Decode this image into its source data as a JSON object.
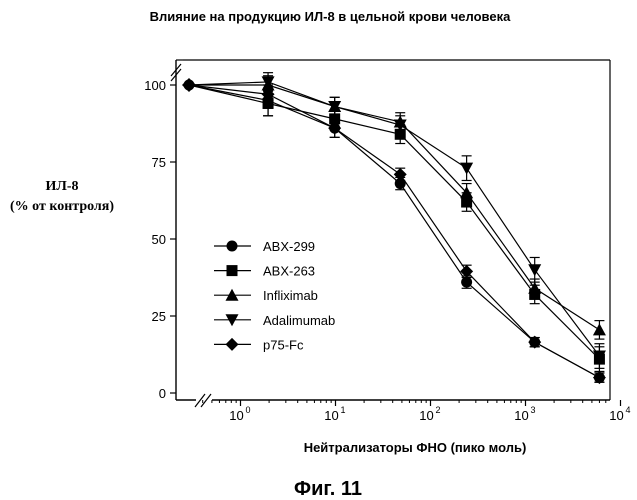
{
  "page": {
    "title": "Влияние на продукцию ИЛ-8 в цельной крови человека",
    "figure_label": "Фиг. 11"
  },
  "chart_data": {
    "type": "line",
    "title": "Влияние на продукцию ИЛ-8 в цельной крови человека",
    "ylabel_line1": "ИЛ-8",
    "ylabel_line2": "(% от контроля)",
    "xlabel": "Нейтрализаторы ФНО (пико моль)",
    "x_scale": "log",
    "xlim": [
      0.3,
      10000
    ],
    "ylim": [
      0,
      105
    ],
    "y_ticks": [
      "0",
      "25",
      "50",
      "75",
      "100"
    ],
    "y_tick_values": [
      0,
      25,
      50,
      75,
      100
    ],
    "x_ticks": [
      {
        "value": 1,
        "base": "10",
        "exp": "0"
      },
      {
        "value": 10,
        "base": "10",
        "exp": "1"
      },
      {
        "value": 100,
        "base": "10",
        "exp": "2"
      },
      {
        "value": 1000,
        "base": "10",
        "exp": "3"
      },
      {
        "value": 10000,
        "base": "10",
        "exp": "4"
      }
    ],
    "axis_breaks": true,
    "grid": false,
    "legend_position": "lower-left",
    "control_point": {
      "x": 0.3,
      "y": 100
    },
    "series": [
      {
        "name": "ABX-299",
        "marker": "circle",
        "x": [
          1.95,
          9.8,
          48,
          240,
          1250,
          6000
        ],
        "y": [
          95,
          86,
          68,
          36,
          16.5,
          5
        ],
        "err": [
          5,
          3,
          2,
          2,
          1.5,
          1.5
        ]
      },
      {
        "name": "ABX-263",
        "marker": "square",
        "x": [
          1.95,
          9.8,
          48,
          240,
          1250,
          6000
        ],
        "y": [
          94,
          89,
          84,
          62,
          32,
          11
        ],
        "err": [
          4,
          3,
          3,
          3,
          3,
          4
        ]
      },
      {
        "name": "Infliximab",
        "marker": "triangle-up",
        "x": [
          1.95,
          9.8,
          48,
          240,
          1250,
          6000
        ],
        "y": [
          100,
          93,
          88,
          65,
          34,
          20.5
        ],
        "err": [
          3,
          3,
          3,
          3,
          3,
          3
        ]
      },
      {
        "name": "Adalimumab",
        "marker": "triangle-down",
        "x": [
          1.95,
          9.8,
          48,
          240,
          1250,
          6000
        ],
        "y": [
          101,
          93,
          87,
          73,
          40,
          12
        ],
        "err": [
          3,
          3,
          3,
          4,
          4,
          4
        ]
      },
      {
        "name": "p75-Fc",
        "marker": "diamond",
        "x": [
          1.95,
          9.8,
          48,
          240,
          1250,
          6000
        ],
        "y": [
          97,
          86,
          71,
          39.5,
          16.5,
          5
        ],
        "err": [
          2,
          3,
          2,
          2,
          1.5,
          1.5
        ]
      }
    ]
  }
}
